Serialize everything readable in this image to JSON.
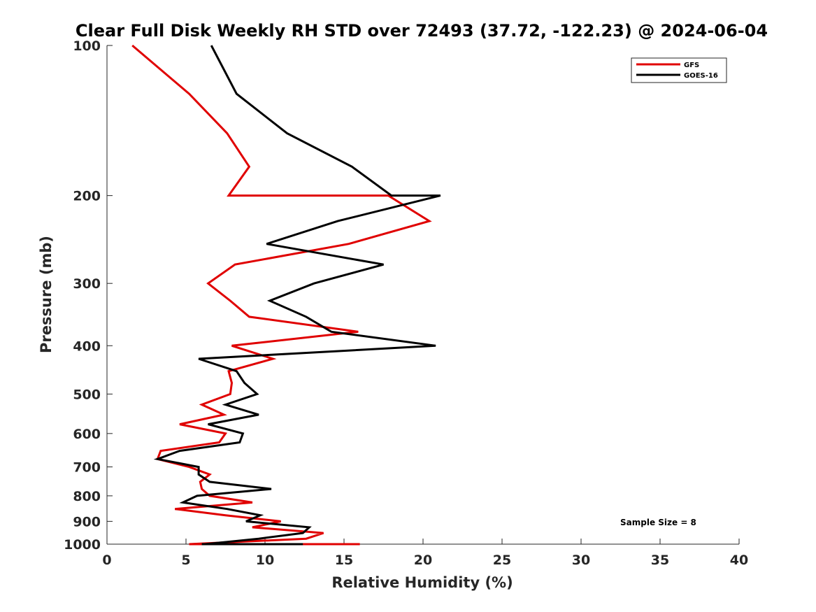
{
  "chart_data": {
    "type": "line",
    "title": "Clear Full Disk Weekly RH STD over 72493 (37.72, -122.23) @ 2024-06-04",
    "xlabel": "Relative Humidity (%)",
    "ylabel": "Pressure (mb)",
    "xlim": [
      0,
      40
    ],
    "ylim": [
      100,
      1000
    ],
    "y_scale": "log",
    "y_reversed": true,
    "grid": false,
    "legend_position": "top-right",
    "x_ticks": [
      0,
      5,
      10,
      15,
      20,
      25,
      30,
      35,
      40
    ],
    "y_ticks": [
      100,
      200,
      300,
      400,
      500,
      600,
      700,
      800,
      900,
      1000
    ],
    "annotation": "Sample Size = 8",
    "series": [
      {
        "name": "GFS",
        "color": "#e00000",
        "points": [
          [
            1.6,
            100
          ],
          [
            5.2,
            125
          ],
          [
            7.6,
            150
          ],
          [
            9.0,
            175
          ],
          [
            7.7,
            200
          ],
          [
            17.8,
            200
          ],
          [
            20.4,
            225
          ],
          [
            15.3,
            250
          ],
          [
            8.1,
            275
          ],
          [
            6.4,
            300
          ],
          [
            7.8,
            325
          ],
          [
            9.0,
            350
          ],
          [
            15.9,
            375
          ],
          [
            7.9,
            400
          ],
          [
            10.5,
            425
          ],
          [
            7.7,
            450
          ],
          [
            7.9,
            475
          ],
          [
            7.8,
            500
          ],
          [
            6.0,
            525
          ],
          [
            7.4,
            550
          ],
          [
            4.6,
            575
          ],
          [
            7.5,
            600
          ],
          [
            7.1,
            625
          ],
          [
            3.4,
            650
          ],
          [
            3.2,
            675
          ],
          [
            5.2,
            700
          ],
          [
            6.5,
            725
          ],
          [
            5.9,
            750
          ],
          [
            6.0,
            775
          ],
          [
            6.5,
            800
          ],
          [
            9.2,
            825
          ],
          [
            4.3,
            850
          ],
          [
            7.5,
            875
          ],
          [
            11.0,
            900
          ],
          [
            9.2,
            925
          ],
          [
            13.7,
            950
          ],
          [
            12.6,
            975
          ],
          [
            5.2,
            1000
          ],
          [
            12.0,
            1000
          ],
          [
            9.4,
            1000
          ],
          [
            13.9,
            1000
          ],
          [
            15.5,
            1000
          ],
          [
            16.0,
            1000
          ],
          [
            11.4,
            1000
          ]
        ]
      },
      {
        "name": "GOES-16",
        "color": "#000000",
        "points": [
          [
            6.6,
            100
          ],
          [
            8.2,
            125
          ],
          [
            11.4,
            150
          ],
          [
            15.5,
            175
          ],
          [
            18.0,
            200
          ],
          [
            21.1,
            200
          ],
          [
            14.6,
            225
          ],
          [
            10.1,
            250
          ],
          [
            17.5,
            275
          ],
          [
            13.1,
            300
          ],
          [
            10.3,
            325
          ],
          [
            12.6,
            350
          ],
          [
            14.2,
            375
          ],
          [
            20.8,
            400
          ],
          [
            5.8,
            425
          ],
          [
            8.2,
            450
          ],
          [
            8.7,
            475
          ],
          [
            9.5,
            500
          ],
          [
            7.5,
            525
          ],
          [
            9.6,
            550
          ],
          [
            6.4,
            575
          ],
          [
            8.6,
            600
          ],
          [
            8.4,
            625
          ],
          [
            4.6,
            650
          ],
          [
            3.2,
            675
          ],
          [
            5.8,
            700
          ],
          [
            5.8,
            725
          ],
          [
            6.5,
            750
          ],
          [
            10.4,
            775
          ],
          [
            5.7,
            800
          ],
          [
            4.8,
            825
          ],
          [
            7.6,
            850
          ],
          [
            9.7,
            875
          ],
          [
            8.8,
            900
          ],
          [
            12.8,
            925
          ],
          [
            12.4,
            950
          ],
          [
            9.6,
            975
          ],
          [
            6.2,
            1000
          ],
          [
            6.0,
            1000
          ],
          [
            12.4,
            1000
          ],
          [
            6.4,
            1000
          ],
          [
            10.2,
            1000
          ],
          [
            12.0,
            1000
          ],
          [
            12.2,
            1000
          ],
          [
            8.5,
            1000
          ]
        ]
      }
    ]
  }
}
